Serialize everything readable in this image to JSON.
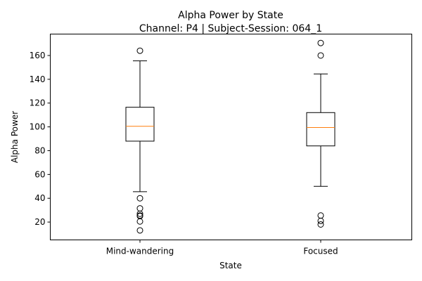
{
  "chart_data": {
    "type": "box",
    "title_line1": "Alpha Power by State",
    "title_line2": "Channel: P4 | Subject-Session: 064_1",
    "xlabel": "State",
    "ylabel": "Alpha Power",
    "ylim": [
      5,
      178
    ],
    "yticks": [
      20,
      40,
      60,
      80,
      100,
      120,
      140,
      160
    ],
    "grid": false,
    "colors": {
      "box": "#000000",
      "median": "#ff7f0e",
      "outlier": "#000000"
    },
    "boxes": [
      {
        "label": "Mind-wandering",
        "whisker_low": 45.5,
        "q1": 88,
        "median": 100.5,
        "q3": 116.5,
        "whisker_high": 155.5,
        "outliers": [
          164,
          40,
          31.5,
          27,
          25.5,
          25,
          20.5,
          13
        ]
      },
      {
        "label": "Focused",
        "whisker_low": 50,
        "q1": 84,
        "median": 99.5,
        "q3": 112,
        "whisker_high": 144.5,
        "outliers": [
          170.5,
          160,
          25.5,
          21,
          18
        ]
      }
    ]
  }
}
